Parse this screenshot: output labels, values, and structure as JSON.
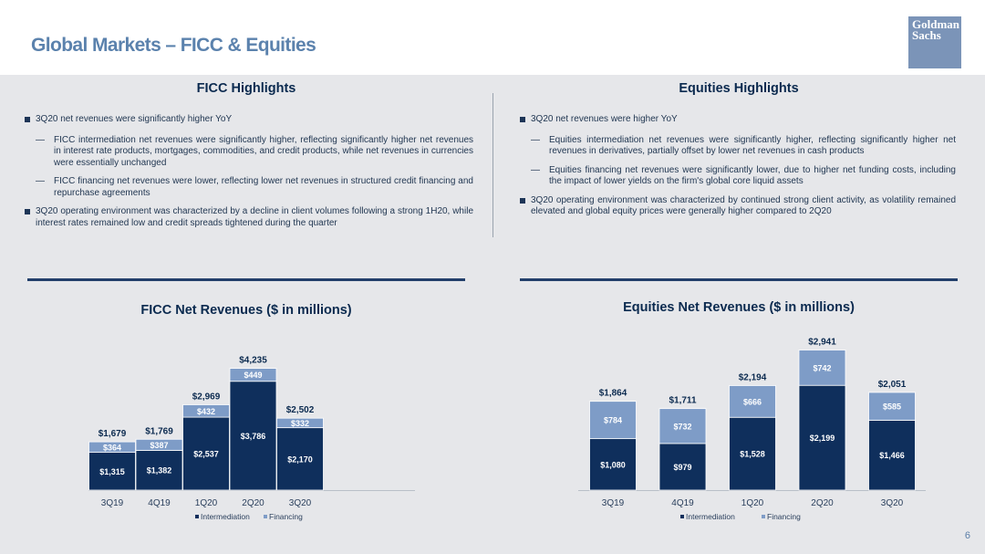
{
  "title": "Global Markets – FICC & Equities",
  "logo": {
    "line1": "Goldman",
    "line2": "Sachs"
  },
  "ficc": {
    "heading": "FICC Highlights",
    "bullets": [
      {
        "text": "3Q20 net revenues were significantly higher YoY",
        "subs": [
          "FICC intermediation net revenues were significantly higher, reflecting significantly higher net revenues in interest rate products, mortgages, commodities, and credit products, while net revenues in currencies were essentially unchanged",
          "FICC financing net revenues were lower, reflecting lower net revenues in structured credit financing and repurchase agreements"
        ]
      },
      {
        "text": "3Q20 operating environment was characterized by a decline in client volumes following a strong 1H20, while interest rates remained low and credit spreads tightened during the quarter",
        "subs": []
      }
    ]
  },
  "equities": {
    "heading": "Equities Highlights",
    "bullets": [
      {
        "text": "3Q20 net revenues were higher YoY",
        "subs": [
          "Equities intermediation net revenues were significantly higher, reflecting significantly higher net revenues in derivatives, partially offset by lower net revenues in cash products",
          "Equities financing net revenues were significantly lower, due to higher net funding costs, including the impact of lower yields on the firm's global core liquid assets"
        ]
      },
      {
        "text": "3Q20 operating environment was characterized by continued strong client activity, as volatility remained elevated and global equity prices were generally higher compared to 2Q20",
        "subs": []
      }
    ]
  },
  "colors": {
    "intermediation": "#0f2f5c",
    "financing": "#7e9cc7"
  },
  "chart_data": [
    {
      "type": "bar",
      "stacked": true,
      "title": "FICC Net Revenues ($ in millions)",
      "categories": [
        "3Q19",
        "4Q19",
        "1Q20",
        "2Q20",
        "3Q20"
      ],
      "series": [
        {
          "name": "Intermediation",
          "values": [
            1315,
            1382,
            2537,
            3786,
            2170
          ],
          "labels": [
            "$1,315",
            "$1,382",
            "$2,537",
            "$3,786",
            "$2,170"
          ]
        },
        {
          "name": "Financing",
          "values": [
            364,
            387,
            432,
            449,
            332
          ],
          "labels": [
            "$364",
            "$387",
            "$432",
            "$449",
            "$332"
          ]
        }
      ],
      "totals": [
        "$1,679",
        "$1,769",
        "$2,969",
        "$4,235",
        "$2,502"
      ],
      "legend": "bottom-center"
    },
    {
      "type": "bar",
      "stacked": true,
      "title": "Equities Net Revenues ($ in millions)",
      "categories": [
        "3Q19",
        "4Q19",
        "1Q20",
        "2Q20",
        "3Q20"
      ],
      "series": [
        {
          "name": "Intermediation",
          "values": [
            1080,
            979,
            1528,
            2199,
            1466
          ],
          "labels": [
            "$1,080",
            "$979",
            "$1,528",
            "$2,199",
            "$1,466"
          ]
        },
        {
          "name": "Financing",
          "values": [
            784,
            732,
            666,
            742,
            585
          ],
          "labels": [
            "$784",
            "$732",
            "$666",
            "$742",
            "$585"
          ]
        }
      ],
      "totals": [
        "$1,864",
        "$1,711",
        "$2,194",
        "$2,941",
        "$2,051"
      ],
      "legend": "bottom-center"
    }
  ],
  "page_number": "6"
}
